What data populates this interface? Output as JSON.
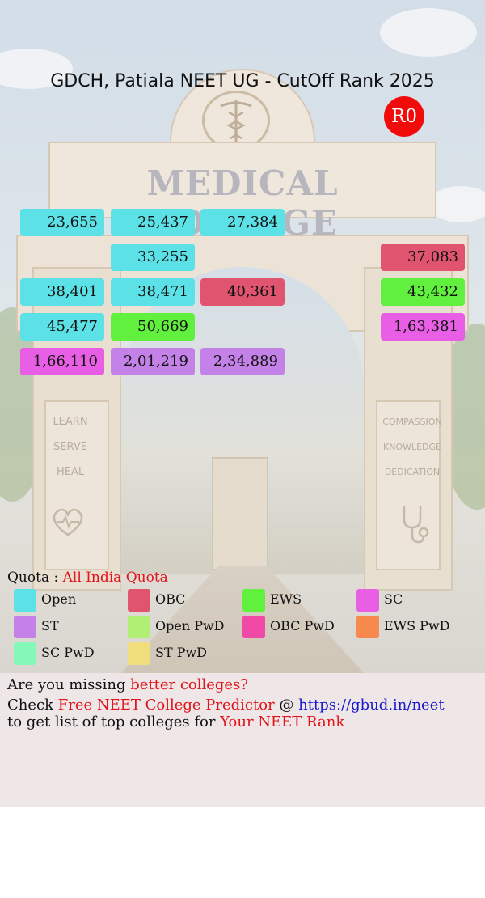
{
  "header": {
    "title": "GDCH, Patiala NEET UG - CutOff Rank 2025",
    "round": "R0"
  },
  "colors": {
    "Open": "#5ce1e6",
    "OBC": "#e05470",
    "EWS": "#62f03e",
    "SC": "#e85fe6",
    "ST": "#c482e8",
    "Open PwD": "#b1ef74",
    "OBC PwD": "#f04aa6",
    "EWS PwD": "#f7894f",
    "SC PwD": "#85f7b8",
    "ST PwD": "#f0dd7c"
  },
  "ranks": [
    {
      "value": "23,655",
      "category": "Open"
    },
    {
      "value": "25,437",
      "category": "Open"
    },
    {
      "value": "27,384",
      "category": "Open"
    },
    {
      "value": "33,255",
      "category": "Open"
    },
    {
      "value": "37,083",
      "category": "OBC"
    },
    {
      "value": "38,401",
      "category": "Open"
    },
    {
      "value": "38,471",
      "category": "Open"
    },
    {
      "value": "40,361",
      "category": "OBC"
    },
    {
      "value": "43,432",
      "category": "EWS"
    },
    {
      "value": "45,477",
      "category": "Open"
    },
    {
      "value": "50,669",
      "category": "EWS"
    },
    {
      "value": "1,63,381",
      "category": "SC"
    },
    {
      "value": "1,66,110",
      "category": "SC"
    },
    {
      "value": "2,01,219",
      "category": "ST"
    },
    {
      "value": "2,34,889",
      "category": "ST"
    }
  ],
  "quota": {
    "label": "Quota :",
    "value": "All India Quota"
  },
  "legend": [
    {
      "label": "Open",
      "color": "#5ce1e6"
    },
    {
      "label": "OBC",
      "color": "#e05470"
    },
    {
      "label": "EWS",
      "color": "#62f03e"
    },
    {
      "label": "SC",
      "color": "#e85fe6"
    },
    {
      "label": "ST",
      "color": "#c482e8"
    },
    {
      "label": "Open PwD",
      "color": "#b1ef74"
    },
    {
      "label": "OBC PwD",
      "color": "#f04aa6"
    },
    {
      "label": "EWS PwD",
      "color": "#f7894f"
    },
    {
      "label": "SC PwD",
      "color": "#85f7b8"
    },
    {
      "label": "ST PwD",
      "color": "#f0dd7c"
    }
  ],
  "background": {
    "arch_text": "MEDICAL COLLEGE",
    "left_pillar": [
      "LEARN",
      "SERVE",
      "HEAL"
    ],
    "right_pillar": [
      "COMPASSION",
      "KNOWLEDGE",
      "DEDICATION"
    ],
    "left_icon": "heart-pulse-icon",
    "right_icon": "stethoscope-icon",
    "top_icon": "caduceus-icon"
  },
  "footer": {
    "line1_prefix": "Are you missing ",
    "line1_highlight": "better colleges?",
    "line2_prefix": "Check ",
    "line2_highlight": "Free NEET College Predictor",
    "line2_at": " @ ",
    "line2_link": "https://gbud.in/neet",
    "line3_prefix": "to get list of top colleges for ",
    "line3_highlight": "Your NEET Rank"
  }
}
